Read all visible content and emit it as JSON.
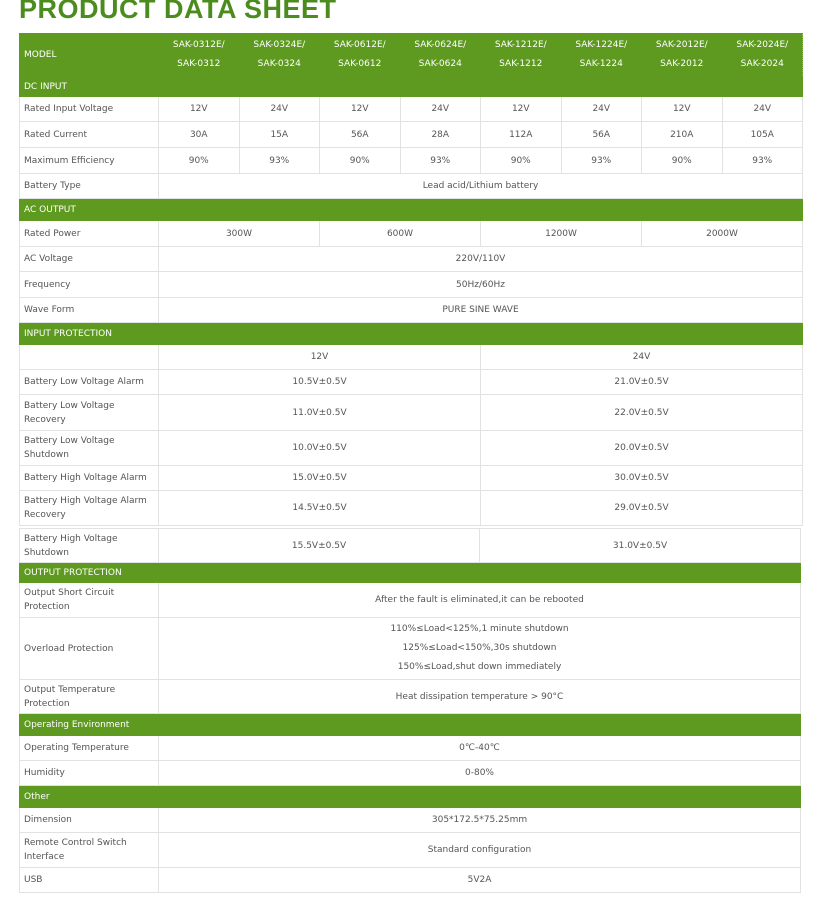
{
  "title": "PRODUCT DATA SHEET",
  "header": {
    "label": "MODEL",
    "models": [
      [
        "SAK-0312E/",
        "SAK-0312"
      ],
      [
        "SAK-0324E/",
        "SAK-0324"
      ],
      [
        "SAK-0612E/",
        "SAK-0612"
      ],
      [
        "SAK-0624E/",
        "SAK-0624"
      ],
      [
        "SAK-1212E/",
        "SAK-1212"
      ],
      [
        "SAK-1224E/",
        "SAK-1224"
      ],
      [
        "SAK-2012E/",
        "SAK-2012"
      ],
      [
        "SAK-2024E/",
        "SAK-2024"
      ]
    ]
  },
  "dc_input": {
    "title": "DC INPUT",
    "rated_input_voltage": {
      "label": "Rated Input Voltage",
      "values": [
        "12V",
        "24V",
        "12V",
        "24V",
        "12V",
        "24V",
        "12V",
        "24V"
      ]
    },
    "rated_current": {
      "label": "Rated Current",
      "values": [
        "30A",
        "15A",
        "56A",
        "28A",
        "112A",
        "56A",
        "210A",
        "105A"
      ]
    },
    "max_efficiency": {
      "label": "Maximum Efficiency",
      "values": [
        "90%",
        "93%",
        "90%",
        "93%",
        "90%",
        "93%",
        "90%",
        "93%"
      ]
    },
    "battery_type": {
      "label": "Battery Type",
      "value": "Lead acid/Lithium battery"
    }
  },
  "ac_output": {
    "title": "AC OUTPUT",
    "rated_power": {
      "label": "Rated Power",
      "values": [
        "300W",
        "600W",
        "1200W",
        "2000W"
      ]
    },
    "ac_voltage": {
      "label": "AC Voltage",
      "value": "220V/110V"
    },
    "frequency": {
      "label": "Frequency",
      "value": "50Hz/60Hz"
    },
    "wave_form": {
      "label": "Wave Form",
      "value": "PURE SINE WAVE"
    }
  },
  "input_protection": {
    "title": "INPUT PROTECTION",
    "columns": [
      "12V",
      "24V"
    ],
    "rows": [
      {
        "label": "Battery Low Voltage Alarm",
        "v12": "10.5V±0.5V",
        "v24": "21.0V±0.5V"
      },
      {
        "label": "Battery Low Voltage Recovery",
        "v12": "11.0V±0.5V",
        "v24": "22.0V±0.5V"
      },
      {
        "label": "Battery Low Voltage Shutdown",
        "v12": "10.0V±0.5V",
        "v24": "20.0V±0.5V"
      },
      {
        "label": "Battery High Voltage Alarm",
        "v12": "15.0V±0.5V",
        "v24": "30.0V±0.5V"
      },
      {
        "label": "Battery High Voltage Alarm Recovery",
        "v12": "14.5V±0.5V",
        "v24": "29.0V±0.5V"
      },
      {
        "label": "Battery High Voltage Shutdown",
        "v12": "15.5V±0.5V",
        "v24": "31.0V±0.5V"
      }
    ]
  },
  "output_protection": {
    "title": "OUTPUT PROTECTION",
    "short_circuit": {
      "label": "Output Short Circuit Protection",
      "value": "After the fault is eliminated,it can be rebooted"
    },
    "overload": {
      "label": "Overload Protection",
      "lines": [
        "110%≤Load<125%,1 minute shutdown",
        "125%≤Load<150%,30s shutdown",
        "150%≤Load,shut down immediately"
      ]
    },
    "temperature": {
      "label": "Output Temperature Protection",
      "value": "Heat dissipation temperature > 90°C"
    }
  },
  "environment": {
    "title": "Operating Environment",
    "temperature": {
      "label": "Operating Temperature",
      "value": "0℃-40℃"
    },
    "humidity": {
      "label": "Humidity",
      "value": "0-80%"
    }
  },
  "other": {
    "title": "Other",
    "dimension": {
      "label": "Dimension",
      "value": "305*172.5*75.25mm"
    },
    "remote": {
      "label": "Remote Control Switch Interface",
      "value": "Standard configuration"
    },
    "usb": {
      "label": "USB",
      "value": "5V2A"
    }
  },
  "colors": {
    "accent": "#5e9a20",
    "title": "#4c8c1e"
  }
}
